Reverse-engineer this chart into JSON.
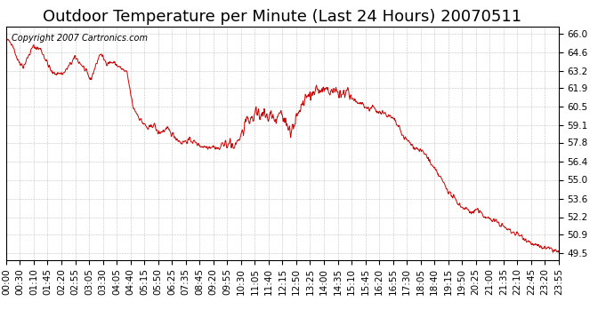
{
  "title": "Outdoor Temperature per Minute (Last 24 Hours) 20070511",
  "copyright_text": "Copyright 2007 Cartronics.com",
  "line_color": "#cc0000",
  "background_color": "#ffffff",
  "grid_color": "#aaaaaa",
  "yticks": [
    49.5,
    50.9,
    52.2,
    53.6,
    55.0,
    56.4,
    57.8,
    59.1,
    60.5,
    61.9,
    63.2,
    64.6,
    66.0
  ],
  "ylim": [
    49.0,
    66.5
  ],
  "xtick_labels": [
    "00:00",
    "00:30",
    "01:10",
    "01:45",
    "02:20",
    "02:55",
    "03:05",
    "03:30",
    "04:05",
    "04:40",
    "05:15",
    "05:50",
    "06:25",
    "07:35",
    "08:45",
    "09:20",
    "09:55",
    "10:30",
    "11:05",
    "11:40",
    "12:15",
    "12:50",
    "13:25",
    "14:00",
    "14:35",
    "15:10",
    "15:45",
    "16:20",
    "16:55",
    "17:30",
    "18:05",
    "18:40",
    "19:15",
    "19:50",
    "20:25",
    "21:00",
    "21:35",
    "22:10",
    "22:45",
    "23:20",
    "23:55"
  ],
  "keypoints_x": [
    0,
    15,
    30,
    45,
    70,
    90,
    120,
    150,
    180,
    200,
    220,
    245,
    260,
    280,
    315,
    330,
    350,
    370,
    385,
    395,
    420,
    455,
    480,
    510,
    525,
    540,
    555,
    565,
    580,
    595,
    610,
    625,
    635,
    650,
    660,
    670,
    680,
    690,
    700,
    710,
    720,
    740,
    755,
    770,
    785,
    800,
    810,
    820,
    830,
    840,
    855,
    865,
    875,
    885,
    895,
    905,
    915,
    925,
    935,
    945,
    955,
    965,
    975,
    985,
    995,
    1010,
    1025,
    1035,
    1050,
    1060,
    1080,
    1095,
    1110,
    1130,
    1155,
    1170,
    1185,
    1200,
    1215,
    1225,
    1235,
    1250,
    1265,
    1280,
    1295,
    1310,
    1325,
    1340,
    1355,
    1370,
    1385,
    1400,
    1415,
    1430,
    1439
  ],
  "keypoints_y": [
    65.5,
    65.3,
    64.0,
    63.5,
    65.0,
    64.8,
    63.0,
    63.0,
    64.2,
    63.5,
    62.5,
    64.5,
    63.8,
    63.8,
    63.0,
    60.5,
    59.5,
    58.8,
    59.2,
    58.5,
    58.8,
    57.8,
    58.0,
    57.5,
    57.5,
    57.5,
    57.3,
    57.8,
    57.5,
    57.5,
    58.2,
    59.2,
    59.5,
    60.0,
    59.8,
    60.3,
    59.5,
    60.0,
    59.5,
    60.0,
    60.0,
    58.5,
    59.5,
    60.5,
    61.2,
    61.5,
    61.8,
    61.5,
    61.9,
    61.5,
    61.7,
    61.5,
    61.3,
    61.5,
    61.2,
    61.0,
    60.7,
    60.8,
    60.5,
    60.3,
    60.5,
    60.0,
    60.2,
    60.0,
    59.8,
    59.5,
    58.8,
    58.2,
    57.8,
    57.5,
    57.2,
    56.8,
    56.0,
    55.2,
    54.0,
    53.5,
    53.0,
    52.8,
    52.5,
    52.8,
    52.5,
    52.2,
    52.0,
    51.8,
    51.5,
    51.2,
    51.0,
    50.8,
    50.5,
    50.2,
    50.0,
    49.9,
    49.8,
    49.7,
    49.5
  ],
  "title_fontsize": 13,
  "tick_fontsize": 7.5,
  "copyright_fontsize": 7
}
